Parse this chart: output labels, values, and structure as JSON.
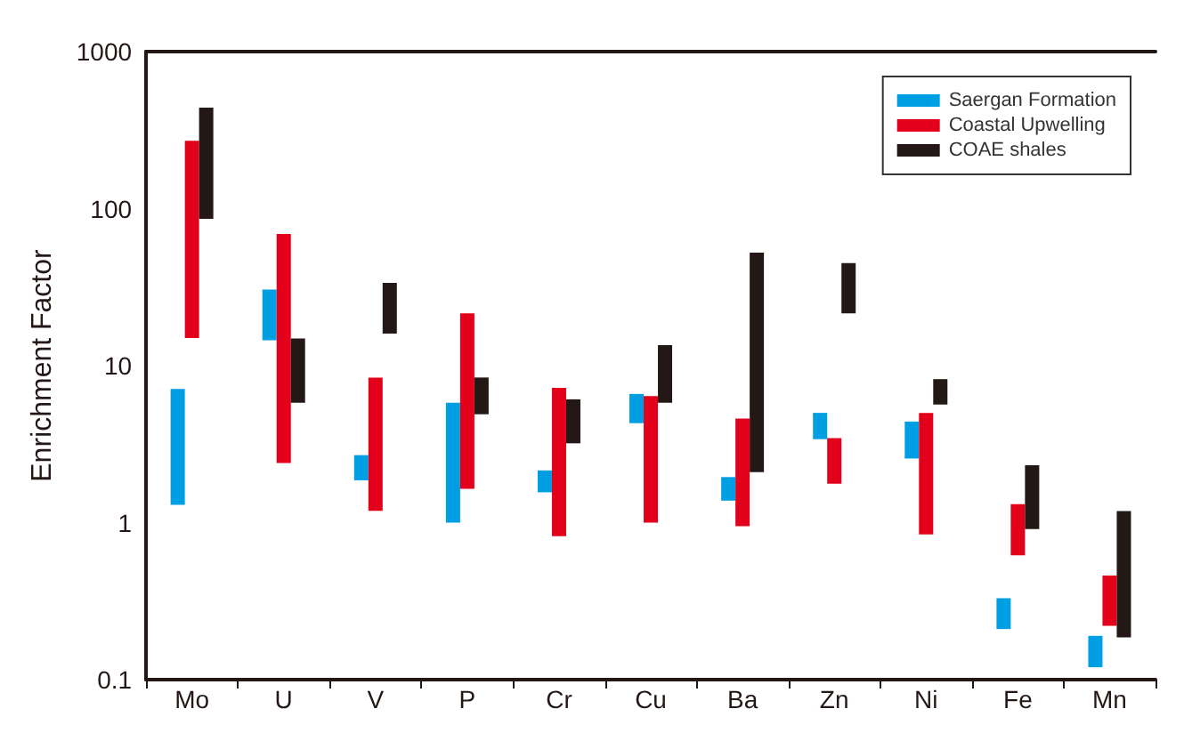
{
  "chart_data": {
    "type": "bar",
    "ylabel": "Enrichment Factor",
    "categories": [
      "Mo",
      "U",
      "V",
      "P",
      "Cr",
      "Cu",
      "Ba",
      "Zn",
      "Ni",
      "Fe",
      "Mn"
    ],
    "series": [
      {
        "name": "Saergan Formation",
        "color": "#009fe3",
        "base": [
          1.3,
          14.5,
          1.86,
          1.0,
          1.56,
          4.3,
          1.38,
          3.4,
          2.56,
          0.21,
          0.12
        ],
        "values": [
          5.8,
          16,
          0.83,
          4.8,
          0.59,
          2.3,
          0.57,
          1.6,
          1.84,
          0.12,
          0.07
        ]
      },
      {
        "name": "Coastal Upwelling",
        "color": "#e3001b",
        "base": [
          15,
          2.4,
          1.19,
          1.64,
          0.82,
          1.0,
          0.95,
          1.77,
          0.84,
          0.62,
          0.22
        ],
        "values": [
          255,
          66.6,
          7.2,
          19.9,
          6.4,
          5.4,
          3.65,
          1.68,
          4.16,
          0.69,
          0.24
        ]
      },
      {
        "name": "COAE shales",
        "color": "#231815",
        "base": [
          86,
          5.8,
          16,
          4.9,
          3.2,
          5.8,
          2.1,
          21.5,
          5.65,
          0.91,
          0.186
        ],
        "values": [
          354,
          9.1,
          17.6,
          3.5,
          2.9,
          7.7,
          50.4,
          23.5,
          2.55,
          1.41,
          1.0
        ]
      }
    ],
    "log": true,
    "ylim": [
      0.1,
      1000
    ],
    "yticks": [
      0.1,
      1,
      10,
      100,
      1000
    ],
    "grid": false,
    "legend": "top right"
  }
}
